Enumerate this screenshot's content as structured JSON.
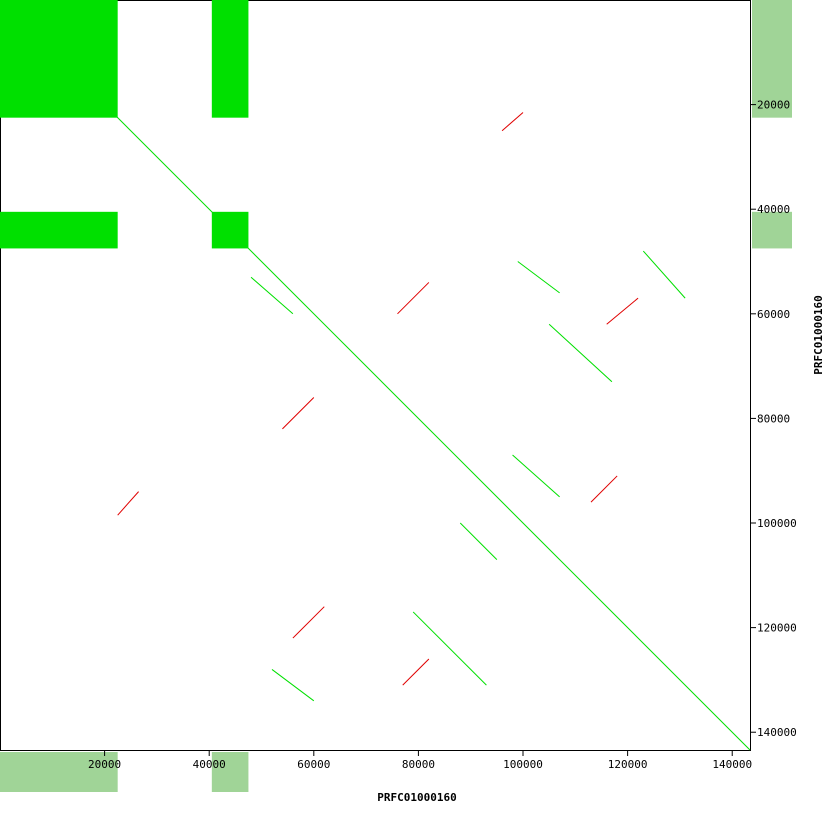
{
  "chart_data": {
    "type": "dotplot",
    "xlabel": "PRFC01000160",
    "ylabel": "PRFC01000160",
    "xlim": [
      0,
      143400
    ],
    "ylim": [
      0,
      143400
    ],
    "xticks": [
      20000,
      40000,
      60000,
      80000,
      100000,
      120000,
      140000
    ],
    "yticks": [
      20000,
      40000,
      60000,
      80000,
      100000,
      120000,
      140000
    ],
    "forward_color": "#00e000",
    "reverse_color": "#e00000",
    "band_color": "#a0d497",
    "regions": [
      [
        0,
        22500
      ],
      [
        40500,
        47500
      ]
    ],
    "blocks": [
      {
        "x": [
          0,
          22500
        ],
        "y": [
          0,
          22500
        ]
      },
      {
        "x": [
          40500,
          47500
        ],
        "y": [
          0,
          22500
        ]
      },
      {
        "x": [
          0,
          22500
        ],
        "y": [
          40500,
          47500
        ]
      },
      {
        "x": [
          40500,
          47500
        ],
        "y": [
          40500,
          47500
        ]
      }
    ],
    "segments": [
      {
        "strand": "forward",
        "x": [
          0,
          143400
        ],
        "y": [
          0,
          143400
        ]
      },
      {
        "strand": "reverse",
        "x": [
          96000,
          100000
        ],
        "y": [
          25000,
          21500
        ]
      },
      {
        "strand": "reverse",
        "x": [
          76000,
          82000
        ],
        "y": [
          60000,
          54000
        ]
      },
      {
        "strand": "reverse",
        "x": [
          54000,
          60000
        ],
        "y": [
          82000,
          76000
        ]
      },
      {
        "strand": "reverse",
        "x": [
          22500,
          26500
        ],
        "y": [
          98500,
          94000
        ]
      },
      {
        "strand": "reverse",
        "x": [
          116000,
          122000
        ],
        "y": [
          62000,
          57000
        ]
      },
      {
        "strand": "reverse",
        "x": [
          56000,
          62000
        ],
        "y": [
          122000,
          116000
        ]
      },
      {
        "strand": "reverse",
        "x": [
          113000,
          118000
        ],
        "y": [
          96000,
          91000
        ]
      },
      {
        "strand": "reverse",
        "x": [
          77000,
          82000
        ],
        "y": [
          131000,
          126000
        ]
      },
      {
        "strand": "forward",
        "x": [
          99000,
          107000
        ],
        "y": [
          50000,
          56000
        ]
      },
      {
        "strand": "forward",
        "x": [
          105000,
          117000
        ],
        "y": [
          62000,
          73000
        ]
      },
      {
        "strand": "forward",
        "x": [
          88000,
          95000
        ],
        "y": [
          100000,
          107000
        ]
      },
      {
        "strand": "forward",
        "x": [
          52000,
          60000
        ],
        "y": [
          128000,
          134000
        ]
      },
      {
        "strand": "forward",
        "x": [
          123000,
          131000
        ],
        "y": [
          48000,
          57000
        ]
      },
      {
        "strand": "forward",
        "x": [
          79000,
          93000
        ],
        "y": [
          117000,
          131000
        ]
      },
      {
        "strand": "forward",
        "x": [
          48000,
          56000
        ],
        "y": [
          53000,
          60000
        ]
      },
      {
        "strand": "forward",
        "x": [
          98000,
          107000
        ],
        "y": [
          87000,
          95000
        ]
      }
    ]
  }
}
